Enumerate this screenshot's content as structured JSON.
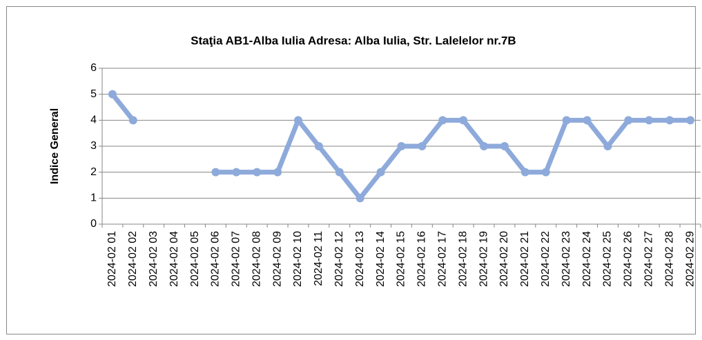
{
  "chart_data": {
    "type": "line",
    "title": "Staţia AB1-Alba Iulia  Adresa: Alba Iulia, Str. Lalelelor nr.7B",
    "y_label": "Indice General",
    "categories": [
      "2024-02 01",
      "2024-02 02",
      "2024-02 03",
      "2024-02 04",
      "2024-02 05",
      "2024-02 06",
      "2024-02 07",
      "2024-02 08",
      "2024-02 09",
      "2024-02 10",
      "2024-02 11",
      "2024-02 12",
      "2024-02 13",
      "2024-02 14",
      "2024-02 15",
      "2024-02 16",
      "2024-02 17",
      "2024-02 18",
      "2024-02 19",
      "2024-02 20",
      "2024-02 21",
      "2024-02 22",
      "2024-02 23",
      "2024-02 24",
      "2024-02 25",
      "2024-02 26",
      "2024-02 27",
      "2024-02 28",
      "2024-02 29"
    ],
    "values": [
      5,
      4,
      null,
      null,
      null,
      2,
      2,
      2,
      2,
      4,
      3,
      2,
      1,
      2,
      3,
      3,
      4,
      4,
      3,
      3,
      2,
      2,
      4,
      4,
      3,
      4,
      4,
      4,
      4
    ],
    "color": "#8eaadb",
    "ylim": [
      0,
      6
    ],
    "yticks": [
      0,
      1,
      2,
      3,
      4,
      5,
      6
    ],
    "grid": true
  }
}
